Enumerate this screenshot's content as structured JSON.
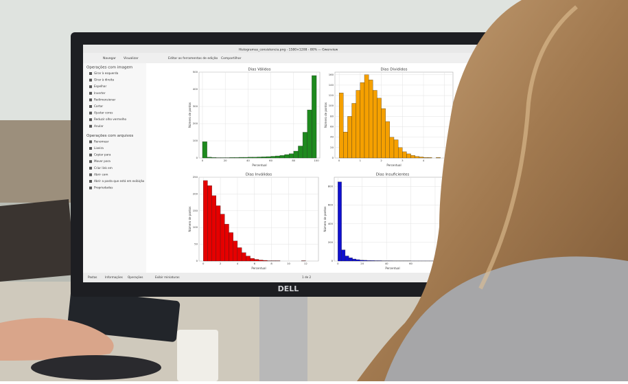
{
  "window": {
    "title": "Histogramas_consistencia.png - 1580×1208 - 80% — Gwenview",
    "toolbar": [
      "Navegar",
      "Visualizar",
      "Editar as ferramentas de edição",
      "Compartilhar"
    ],
    "status": [
      "Pastas",
      "Informações",
      "Operações",
      "Exibir miniaturas",
      "1 de 2"
    ],
    "brand": "DELL"
  },
  "sidebar": [
    {
      "heading": "Operações com imagem",
      "items": [
        "Girar à esquerda",
        "Girar à direita",
        "Espelhar",
        "Inverter",
        "Redimensionar",
        "Cortar",
        "Ajustar cores",
        "Reduzir olho vermelho",
        "Anular"
      ]
    },
    {
      "heading": "Operações com arquivos",
      "items": [
        "Renomear",
        "Lixeira",
        "Copiar para",
        "Mover para",
        "Criar link em",
        "Abrir com",
        "Abrir a pasta que está em exibição",
        "Propriedades"
      ]
    }
  ],
  "chart_data": [
    {
      "type": "histogram",
      "title": "Dias Válidos",
      "xlabel": "Percentual",
      "ylabel": "Número de pontos",
      "color": "#1e8a1e",
      "bins": [
        0,
        4,
        8,
        12,
        16,
        20,
        24,
        28,
        32,
        36,
        40,
        44,
        48,
        52,
        56,
        60,
        64,
        68,
        72,
        76,
        80,
        84,
        88,
        92,
        96,
        100
      ],
      "counts": [
        95,
        5,
        3,
        2,
        2,
        2,
        3,
        3,
        4,
        4,
        5,
        5,
        6,
        7,
        8,
        10,
        12,
        15,
        20,
        25,
        40,
        70,
        150,
        280,
        480
      ],
      "xlim": [
        -3,
        103
      ],
      "xticks": [
        0,
        20,
        40,
        60,
        80,
        100
      ],
      "ylim": [
        0,
        500
      ],
      "yticks": [
        0,
        100,
        200,
        300,
        400,
        500
      ],
      "grid": true
    },
    {
      "type": "histogram",
      "title": "Dias Divididos",
      "xlabel": "Percentual",
      "ylabel": "Número de pontos",
      "color": "#f5a000",
      "bins": [
        0,
        0.2,
        0.4,
        0.6,
        0.8,
        1,
        1.2,
        1.4,
        1.6,
        1.8,
        2,
        2.2,
        2.4,
        2.6,
        2.8,
        3,
        3.2,
        3.4,
        3.6,
        3.8,
        4,
        4.2,
        4.4,
        4.6,
        4.8,
        5
      ],
      "counts": [
        125,
        50,
        80,
        105,
        130,
        145,
        160,
        150,
        130,
        115,
        95,
        70,
        40,
        35,
        20,
        12,
        8,
        5,
        3,
        2,
        1,
        1,
        0,
        1,
        0
      ],
      "xlim": [
        -0.2,
        5.4
      ],
      "xticks": [
        0,
        1,
        2,
        3,
        4,
        5
      ],
      "ylim": [
        0,
        165
      ],
      "yticks": [
        0,
        20,
        40,
        60,
        80,
        100,
        120,
        140,
        160
      ],
      "grid": true
    },
    {
      "type": "histogram",
      "title": "Dias Inválidos",
      "xlabel": "Percentual",
      "ylabel": "Número de pontos",
      "color": "#e60000",
      "bins": [
        0,
        0.5,
        1,
        1.5,
        2,
        2.5,
        3,
        3.5,
        4,
        4.5,
        5,
        5.5,
        6,
        6.5,
        7,
        7.5,
        8,
        8.5,
        9,
        9.5,
        10,
        10.5,
        11,
        11.5,
        12,
        12.5,
        13
      ],
      "counts": [
        240,
        225,
        195,
        165,
        140,
        110,
        85,
        60,
        40,
        25,
        15,
        8,
        5,
        3,
        2,
        1,
        1,
        1,
        0,
        0,
        0,
        0,
        0,
        1,
        0,
        0
      ],
      "xlim": [
        -0.5,
        13.5
      ],
      "xticks": [
        0,
        2,
        4,
        6,
        8,
        10,
        12
      ],
      "ylim": [
        0,
        250
      ],
      "yticks": [
        0,
        50,
        100,
        150,
        200,
        250
      ],
      "grid": true
    },
    {
      "type": "histogram",
      "title": "Dias Insuficientes",
      "xlabel": "Percentual",
      "ylabel": "Número de pontos",
      "color": "#1010d0",
      "bins": [
        0,
        3,
        6,
        9,
        12,
        15,
        18,
        21,
        24,
        27,
        30,
        33,
        36,
        39,
        42,
        45,
        48,
        51,
        54,
        57,
        60,
        63,
        66,
        69,
        72,
        75,
        78,
        81,
        84,
        87,
        90
      ],
      "counts": [
        850,
        120,
        55,
        35,
        22,
        15,
        10,
        8,
        6,
        5,
        4,
        4,
        3,
        3,
        3,
        2,
        2,
        2,
        2,
        2,
        1,
        1,
        1,
        1,
        1,
        1,
        1,
        1,
        1,
        1
      ],
      "xlim": [
        -3,
        93
      ],
      "xticks": [
        0,
        20,
        40,
        60,
        80
      ],
      "ylim": [
        0,
        900
      ],
      "yticks": [
        0,
        200,
        400,
        600,
        800
      ],
      "grid": true
    }
  ]
}
